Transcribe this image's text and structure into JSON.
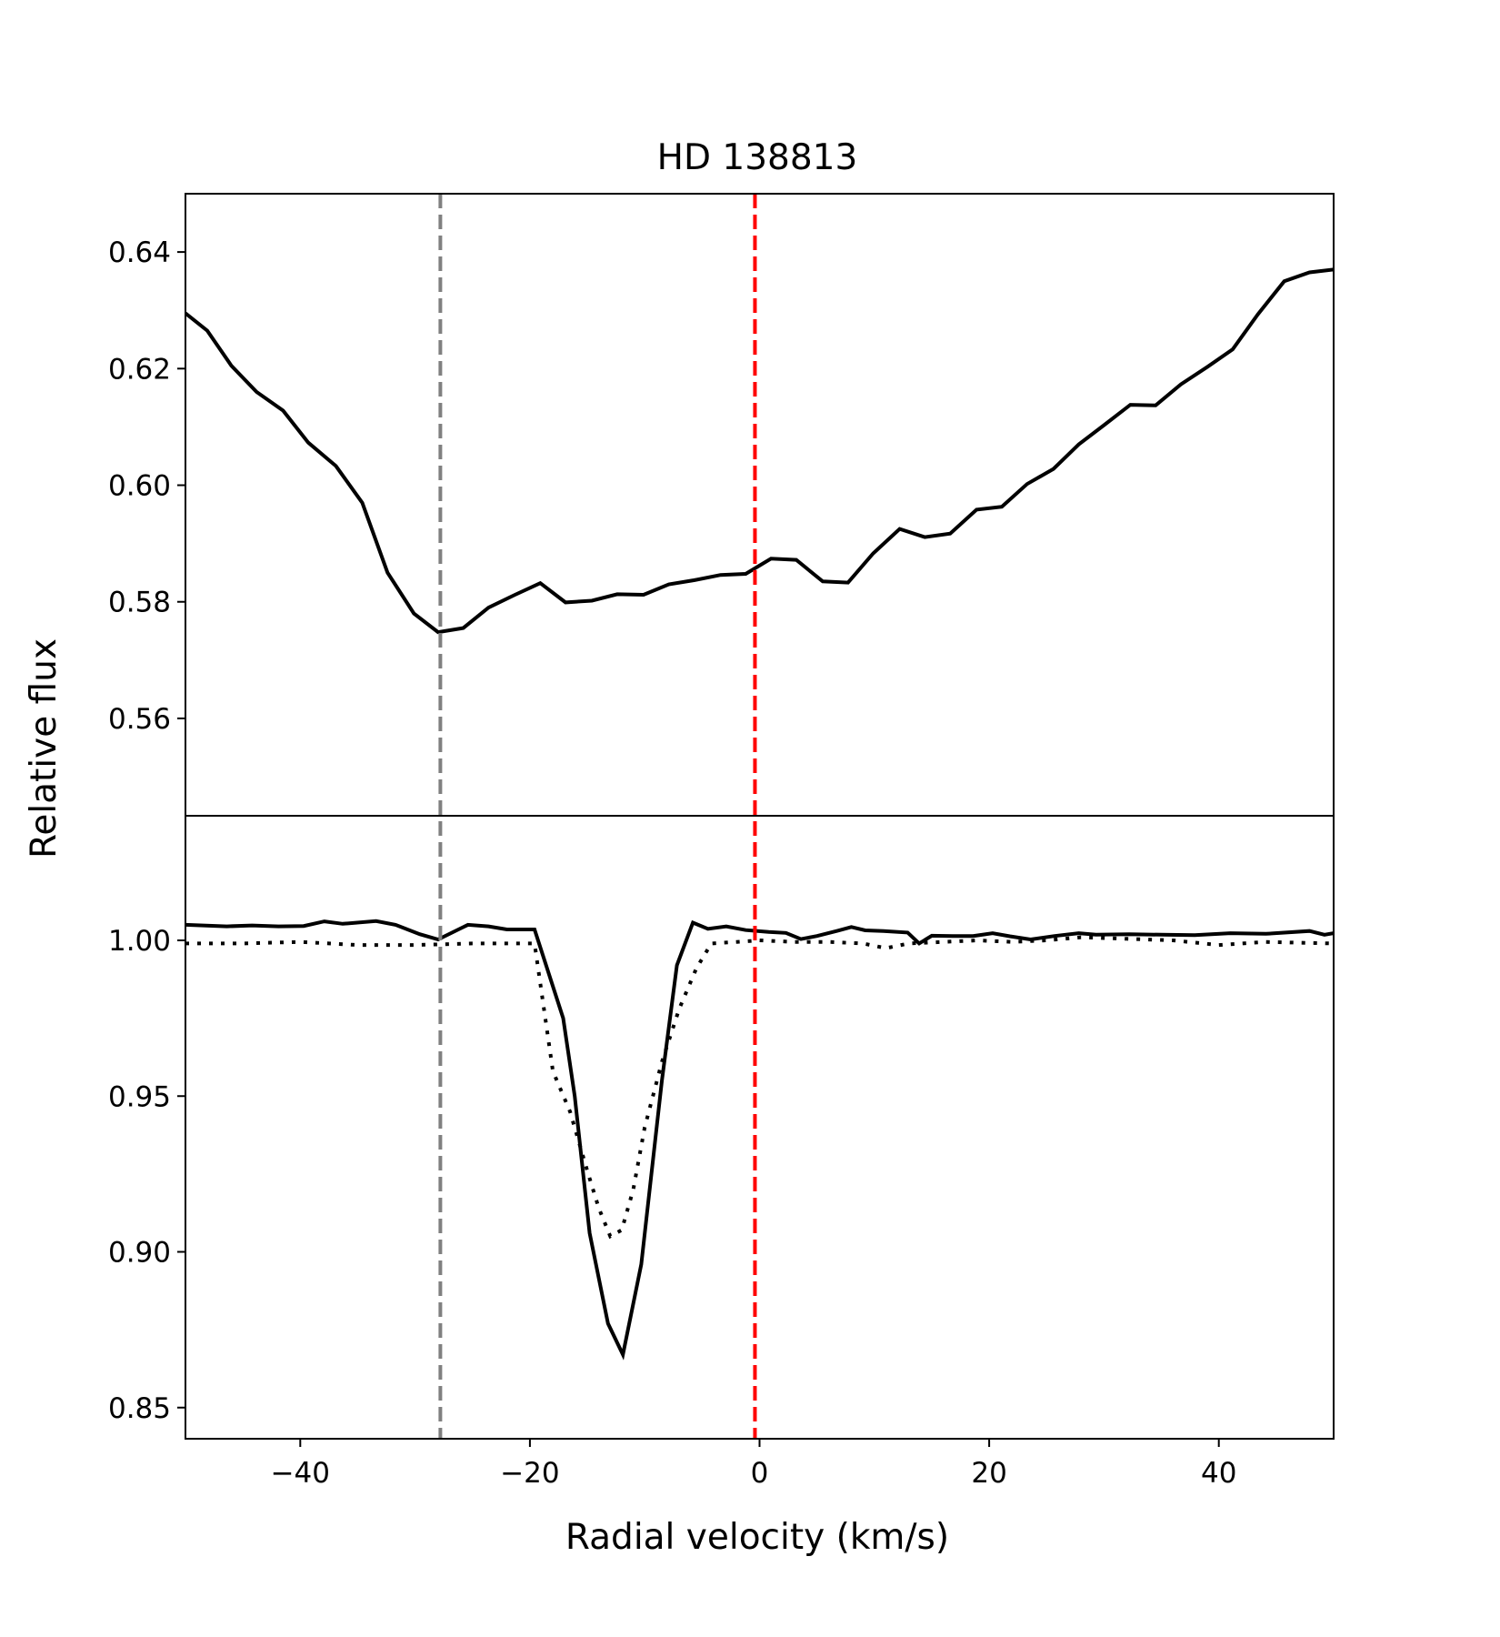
{
  "chart_data": {
    "type": "line",
    "title": "HD 138813",
    "xlabel": "Radial velocity (km/s)",
    "ylabel": "Relative flux",
    "xlim": [
      -50,
      50
    ],
    "xticks": [
      -40,
      -20,
      0,
      20,
      40
    ],
    "xtick_labels": [
      "−40",
      "−20",
      "0",
      "20",
      "40"
    ],
    "grid": false,
    "vlines": [
      {
        "x": -27.8,
        "color": "#808080",
        "style": "dashed"
      },
      {
        "x": -0.4,
        "color": "#ff0000",
        "style": "dashed"
      }
    ],
    "panels": [
      {
        "ylim": [
          0.5433,
          0.65
        ],
        "yticks": [
          0.56,
          0.58,
          0.6,
          0.62,
          0.64
        ],
        "ytick_labels": [
          "0.56",
          "0.58",
          "0.60",
          "0.62",
          "0.64"
        ],
        "series": [
          {
            "style": "solid",
            "color": "#000000",
            "x": [
              -50.0,
              -48.1,
              -46.0,
              -43.8,
              -41.5,
              -39.3,
              -36.9,
              -34.6,
              -32.4,
              -30.1,
              -28.0,
              -25.8,
              -23.6,
              -21.3,
              -19.1,
              -16.9,
              -14.6,
              -12.4,
              -10.1,
              -7.9,
              -5.7,
              -3.4,
              -1.2,
              1.0,
              3.2,
              5.5,
              7.7,
              9.9,
              12.2,
              14.4,
              16.6,
              18.9,
              21.1,
              23.3,
              25.6,
              27.8,
              30.0,
              32.3,
              34.5,
              36.7,
              39.0,
              41.2,
              43.4,
              45.7,
              47.9,
              50.0
            ],
            "y": [
              0.6295,
              0.6265,
              0.6205,
              0.616,
              0.6128,
              0.6073,
              0.6033,
              0.597,
              0.585,
              0.578,
              0.5748,
              0.5755,
              0.579,
              0.5812,
              0.5832,
              0.5799,
              0.5802,
              0.5813,
              0.5812,
              0.583,
              0.5837,
              0.5846,
              0.5848,
              0.5874,
              0.5872,
              0.5835,
              0.5833,
              0.5883,
              0.5925,
              0.5911,
              0.5917,
              0.5958,
              0.5963,
              0.6002,
              0.6028,
              0.607,
              0.6103,
              0.6138,
              0.6137,
              0.6173,
              0.6203,
              0.6233,
              0.6293,
              0.635,
              0.6365,
              0.637
            ]
          }
        ]
      },
      {
        "ylim": [
          0.84,
          1.04
        ],
        "yticks": [
          0.85,
          0.9,
          0.95,
          1.0
        ],
        "ytick_labels": [
          "0.85",
          "0.90",
          "0.95",
          "1.00"
        ],
        "series": [
          {
            "style": "solid",
            "color": "#000000",
            "x": [
              -50.0,
              -46.4,
              -44.2,
              -41.9,
              -39.7,
              -37.9,
              -36.3,
              -33.4,
              -31.7,
              -29.6,
              -28.0,
              -25.4,
              -23.6,
              -22.0,
              -19.6,
              -17.1,
              -16.1,
              -14.8,
              -13.2,
              -11.9,
              -10.3,
              -8.5,
              -7.2,
              -5.8,
              -4.5,
              -2.9,
              -1.2,
              0.8,
              2.3,
              3.6,
              5.0,
              6.8,
              8.0,
              9.2,
              10.8,
              12.9,
              13.9,
              15.0,
              16.8,
              18.6,
              20.3,
              21.8,
              23.6,
              25.7,
              27.8,
              29.3,
              32.2,
              35.0,
              37.9,
              41.0,
              44.1,
              47.9,
              49.2,
              50.0
            ],
            "y": [
              1.005,
              1.0045,
              1.0048,
              1.0045,
              1.0046,
              1.0061,
              1.0053,
              1.0062,
              1.005,
              1.002,
              1.0003,
              1.005,
              1.0045,
              1.0035,
              1.0035,
              0.975,
              0.95,
              0.906,
              0.877,
              0.867,
              0.896,
              0.955,
              0.992,
              1.0057,
              1.0037,
              1.0045,
              1.0033,
              1.0027,
              1.0024,
              1.0004,
              1.0014,
              1.0031,
              1.0043,
              1.0032,
              1.003,
              1.0025,
              0.999,
              1.0015,
              1.0014,
              1.0014,
              1.0023,
              1.0013,
              1.0003,
              1.0014,
              1.0023,
              1.0018,
              1.002,
              1.0018,
              1.0017,
              1.0023,
              1.0021,
              1.003,
              1.0018,
              1.0023
            ]
          },
          {
            "style": "dotted",
            "color": "#000000",
            "x": [
              -50.0,
              -45.0,
              -40.0,
              -35.0,
              -30.0,
              -25.0,
              -22.0,
              -19.6,
              -18.0,
              -16.5,
              -15.0,
              -14.0,
              -13.0,
              -12.0,
              -11.0,
              -10.0,
              -8.5,
              -7.0,
              -5.5,
              -4.2,
              -2.0,
              0.0,
              3.0,
              6.0,
              9.0,
              11.0,
              13.0,
              16.0,
              19.0,
              22.0,
              25.0,
              28.0,
              32.0,
              36.0,
              40.0,
              44.0,
              50.0
            ],
            "y": [
              0.999,
              0.999,
              0.9995,
              0.9985,
              0.9985,
              0.999,
              0.999,
              0.999,
              0.958,
              0.945,
              0.926,
              0.914,
              0.905,
              0.907,
              0.92,
              0.94,
              0.961,
              0.978,
              0.991,
              0.999,
              0.9995,
              1.0,
              0.9995,
              0.9995,
              0.999,
              0.9975,
              0.999,
              0.9995,
              1.0,
              0.9995,
              1.0,
              1.001,
              1.0005,
              1.0,
              0.9985,
              0.9995,
              0.999
            ]
          }
        ]
      }
    ]
  }
}
